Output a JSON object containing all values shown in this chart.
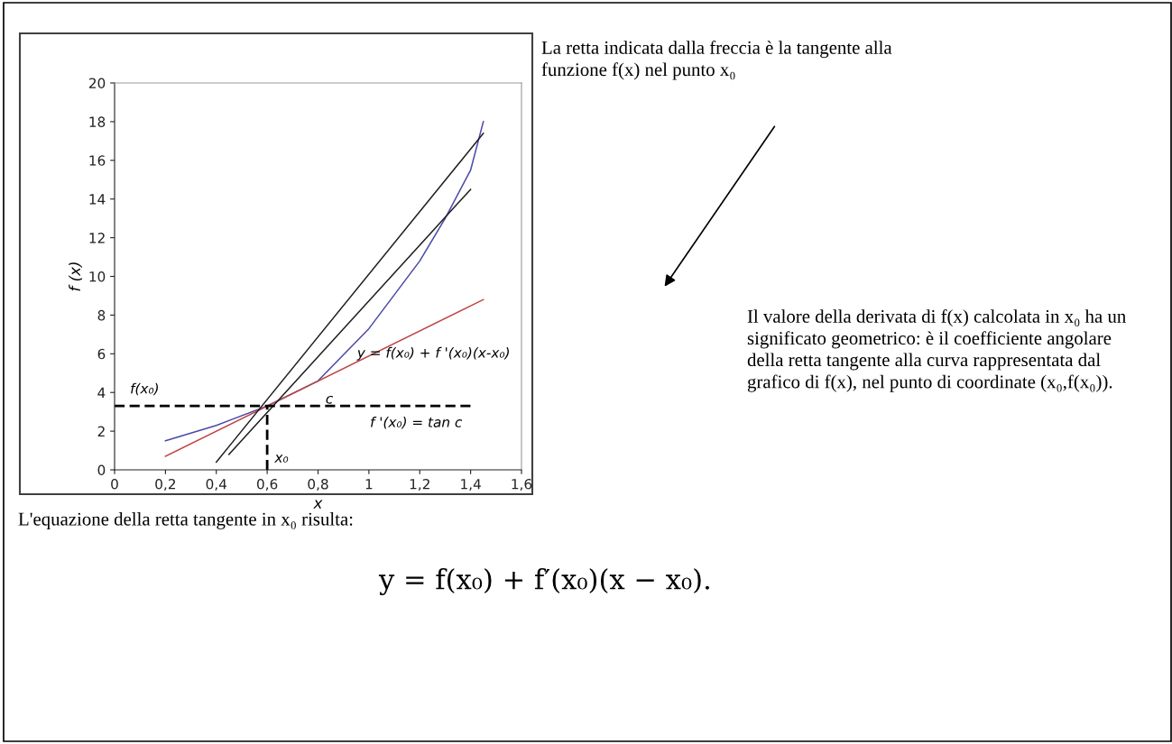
{
  "chart_data": {
    "type": "line",
    "xlabel": "x",
    "ylabel": "f (x)",
    "xlim": [
      0,
      1.6
    ],
    "ylim": [
      0,
      20
    ],
    "xticks": [
      0,
      {
        "value": 0.2,
        "label": "0,2"
      },
      {
        "value": 0.4,
        "label": "0,4"
      },
      {
        "value": 0.6,
        "label": "0,6"
      },
      {
        "value": 0.8,
        "label": "0,8"
      },
      1,
      {
        "value": 1.2,
        "label": "1,2"
      },
      {
        "value": 1.4,
        "label": "1,4"
      },
      {
        "value": 1.6,
        "label": "1,6"
      }
    ],
    "yticks": [
      0,
      2,
      4,
      6,
      8,
      10,
      12,
      14,
      16,
      18,
      20
    ],
    "grid": false,
    "marker": "none",
    "series": [
      {
        "color": "#4a4aa8",
        "x": [
          0.2,
          0.4,
          0.6,
          0.8,
          1.0,
          1.2,
          1.3,
          1.4,
          1.45
        ],
        "values": [
          1.5,
          2.3,
          3.3,
          4.6,
          7.3,
          10.8,
          13,
          15.5,
          18
        ]
      },
      {
        "color": "#c04848",
        "x": [
          0.2,
          1.45
        ],
        "values": [
          0.7,
          8.8
        ]
      },
      {
        "color": "#202020",
        "x": [
          0.4,
          1.45
        ],
        "values": [
          0.4,
          17.4
        ]
      },
      {
        "color": "#202020",
        "x": [
          0.45,
          1.4
        ],
        "values": [
          0.8,
          14.5
        ]
      },
      {
        "color": "#000000",
        "line_style": "dashed",
        "x": [
          0,
          1.4
        ],
        "values": [
          3.3,
          3.3
        ]
      },
      {
        "color": "#000000",
        "line_style": "dashed",
        "x": [
          0.6,
          0.6
        ],
        "values": [
          0,
          3.3
        ]
      }
    ],
    "annotations": [
      {
        "text": "f(x₀)",
        "x": 0.1,
        "y": 3.3
      },
      {
        "text": "x₀",
        "x": 0.6,
        "y": 0
      },
      {
        "text": "c",
        "x": 0.8,
        "y": 3.3
      },
      {
        "text": "y = f(x₀) + f '(x₀)(x-x₀)",
        "x": 1.2,
        "y": 7.1
      },
      "f '(x₀) = tan c",
      "La retta indicata dalla freccia è la tangente alla funzione f(x) nel punto x₀",
      "Il valore della derivata di f(x) calcolata in x₀ ha un significato geometrico: è il coefficiente angolare della retta tangente alla curva rappresentata dal grafico di f(x), nel punto di coordinate (x₀,f(x₀)).",
      "L'equazione della retta tangente in x₀ risulta:",
      "y = f(x₀) + f′(x₀)(x − x₀)."
    ]
  }
}
